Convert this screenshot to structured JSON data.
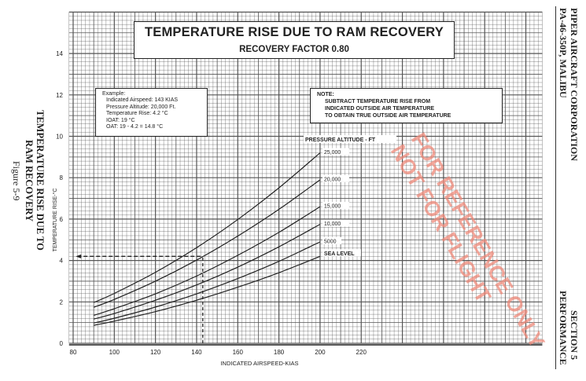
{
  "chart_data": {
    "type": "line",
    "title": "TEMPERATURE RISE DUE TO RAM RECOVERY",
    "subtitle": "RECOVERY FACTOR 0.80",
    "xlabel": "INDICATED AIRSPEED-KIAS",
    "ylabel": "TEMPERATURE RISE-°C",
    "xlim": [
      80,
      220
    ],
    "ylim": [
      0,
      14
    ],
    "x_ticks": [
      "80",
      "100",
      "120",
      "140",
      "160",
      "180",
      "200",
      "220"
    ],
    "y_ticks": [
      "0",
      "2",
      "4",
      "6",
      "8",
      "10",
      "12",
      "14"
    ],
    "grid": true,
    "legend_title": "PRESSURE ALTITUDE - FT",
    "x": [
      90,
      100,
      120,
      140,
      160,
      180,
      200
    ],
    "series": [
      {
        "name": "25,000",
        "values": [
          1.97,
          2.41,
          3.43,
          4.62,
          5.98,
          7.51,
          9.2
        ]
      },
      {
        "name": "20,000",
        "values": [
          1.74,
          2.12,
          3.0,
          4.02,
          5.18,
          6.47,
          7.9
        ]
      },
      {
        "name": "15,000",
        "values": [
          1.35,
          1.67,
          2.39,
          3.25,
          4.25,
          5.36,
          6.6
        ]
      },
      {
        "name": "10,000",
        "values": [
          1.17,
          1.44,
          2.08,
          2.82,
          3.68,
          4.66,
          5.75
        ]
      },
      {
        "name": "5000",
        "values": [
          0.98,
          1.21,
          1.75,
          2.39,
          3.13,
          3.96,
          4.9
        ]
      },
      {
        "name": "SEA LEVEL",
        "values": [
          0.87,
          1.07,
          1.53,
          2.08,
          2.71,
          3.41,
          4.2
        ]
      }
    ],
    "example_path": {
      "airspeed_kias": 143,
      "temperature_rise_c": 4.2
    },
    "example": {
      "heading": "Example:",
      "lines": [
        "Indicated Airspeed: 143 KIAS",
        "Pressure Altitude: 20,000 Ft.",
        "Temperature Rise: 4.2 °C",
        "IOAT: 19 °C",
        "OAT: 19 - 4.2 = 14.8 °C"
      ]
    },
    "note": {
      "heading": "NOTE:",
      "lines": [
        "SUBTRACT TEMPERATURE RISE FROM",
        "INDICATED OUTSIDE AIR TEMPERATURE",
        "TO OBTAIN TRUE OUTSIDE AIR TEMPERATURE"
      ]
    }
  },
  "watermark": [
    "FOR REFERENCE ONLY",
    "NOT FOR FLIGHT"
  ],
  "colors": {
    "ink": "#222222",
    "grid": "#555555",
    "watermark": "#f08a7a"
  },
  "caption": {
    "line1": "TEMPERATURE RISE DUE TO",
    "line2": "RAM RECOVERY",
    "figure": "Figure 5-9"
  },
  "header": {
    "company": "PIPER AIRCRAFT CORPORATION",
    "model": "PA-46-350P, MALIBU",
    "section": "SECTION 5",
    "section_name": "PERFORMANCE"
  }
}
